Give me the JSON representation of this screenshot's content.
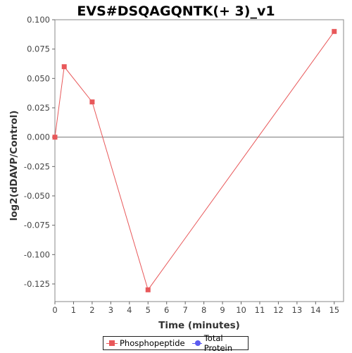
{
  "chart_data": {
    "type": "line",
    "title": "EVS#DSQAGQNTK(+ 3)_v1",
    "xlabel": "Time (minutes)",
    "ylabel": "log2(dDAVP/Control)",
    "xlim": [
      0,
      15.5
    ],
    "ylim": [
      -0.14,
      0.1
    ],
    "x_ticks": [
      0,
      1,
      2,
      3,
      4,
      5,
      6,
      7,
      8,
      9,
      10,
      11,
      12,
      13,
      14,
      15
    ],
    "y_ticks": [
      "0.100",
      "0.075",
      "0.050",
      "0.025",
      "0.000",
      "-0.025",
      "-0.050",
      "-0.075",
      "-0.100",
      "-0.125"
    ],
    "zero_line": true,
    "series": [
      {
        "name": "Phosphopeptide",
        "color": "#e8585a",
        "marker": "square",
        "x": [
          0,
          0.5,
          2,
          5,
          15
        ],
        "y": [
          0.0,
          0.06,
          0.03,
          -0.13,
          0.09
        ]
      },
      {
        "name": "Total Protein",
        "color": "#5b5bf0",
        "marker": "circle",
        "x": [],
        "y": []
      }
    ],
    "legend": "bottom-center"
  }
}
